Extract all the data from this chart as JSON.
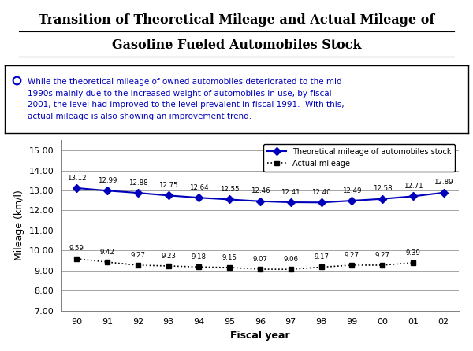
{
  "title_line1": "Transition of Theoretical Mileage and Actual Mileage of",
  "title_line2": "Gasoline Fueled Automobiles Stock",
  "xlabel": "Fiscal year",
  "ylabel": "Mileage (km/l)",
  "years": [
    "90",
    "91",
    "92",
    "93",
    "94",
    "95",
    "96",
    "97",
    "98",
    "99",
    "00",
    "01",
    "02"
  ],
  "theoretical": [
    13.12,
    12.99,
    12.88,
    12.75,
    12.64,
    12.55,
    12.46,
    12.41,
    12.4,
    12.49,
    12.58,
    12.71,
    12.89
  ],
  "actual": [
    9.59,
    9.42,
    9.27,
    9.23,
    9.18,
    9.15,
    9.07,
    9.06,
    9.17,
    9.27,
    9.27,
    9.39,
    null
  ],
  "ylim": [
    7.0,
    15.5
  ],
  "yticks": [
    7.0,
    8.0,
    9.0,
    10.0,
    11.0,
    12.0,
    13.0,
    14.0,
    15.0
  ],
  "ytick_labels": [
    "7.00",
    "8.00",
    "9.00",
    "10.00",
    "11.00",
    "12.00",
    "13.00",
    "14.00",
    "15.00"
  ],
  "line1_color": "#0000bb",
  "line2_color": "#000000",
  "marker1": "D",
  "marker2": "s",
  "annotation_text": "While the theoretical mileage of owned automobiles deteriorated to the mid\n1990s mainly due to the increased weight of automobiles in use, by fiscal\n2001, the level had improved to the level prevalent in fiscal 1991.  With this,\nactual mileage is also showing an improvement trend.",
  "legend1": "Theoretical mileage of automobiles stock",
  "legend2": "Actual mileage",
  "bg_title": "#c8d8e8",
  "bg_figure": "#ffffff"
}
